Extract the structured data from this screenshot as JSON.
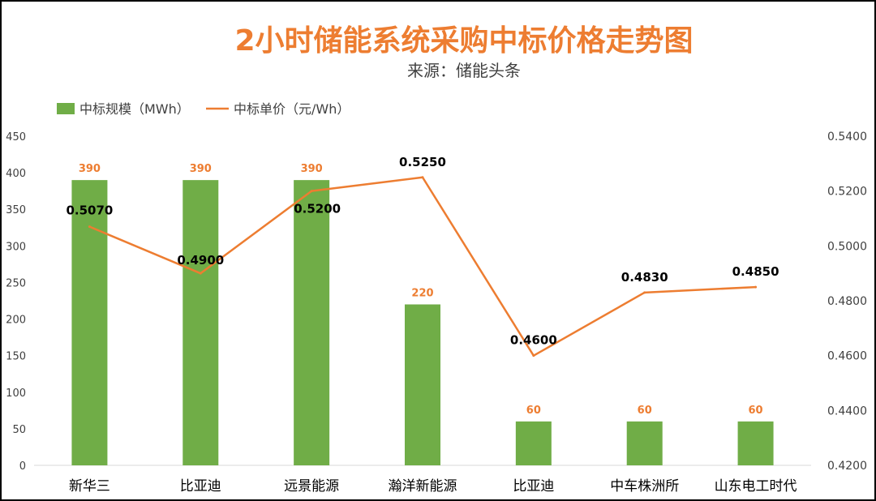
{
  "chart_data": {
    "type": "bar",
    "title": "2小时储能系统采购中标价格走势图",
    "subtitle": "来源：储能头条",
    "categories": [
      "新华三",
      "比亚迪",
      "远景能源",
      "瀚洋新能源",
      "比亚迪",
      "中车株洲所",
      "山东电工时代"
    ],
    "series": [
      {
        "name": "中标规模（MWh）",
        "type": "bar",
        "axis": "left",
        "color": "#70AD47",
        "label_color": "#ED7D31",
        "values": [
          390,
          390,
          390,
          220,
          60,
          60,
          60
        ],
        "labels": [
          "390",
          "390",
          "390",
          "220",
          "60",
          "60",
          "60"
        ]
      },
      {
        "name": "中标单价（元/Wh）",
        "type": "line",
        "axis": "right",
        "color": "#ED7D31",
        "label_color": "#000000",
        "values": [
          0.507,
          0.49,
          0.52,
          0.525,
          0.46,
          0.483,
          0.485
        ],
        "labels": [
          "0.5070",
          "0.4900",
          "0.5200",
          "0.5250",
          "0.4600",
          "0.4830",
          "0.4850"
        ]
      }
    ],
    "y_left": {
      "min": 0,
      "max": 450,
      "ticks": [
        "0",
        "50",
        "100",
        "150",
        "200",
        "250",
        "300",
        "350",
        "400",
        "450"
      ]
    },
    "y_right": {
      "min": 0.42,
      "max": 0.54,
      "ticks": [
        "0.4200",
        "0.4400",
        "0.4600",
        "0.4800",
        "0.5000",
        "0.5200",
        "0.5400"
      ]
    },
    "grid": false,
    "legend_position": "top-left",
    "title_color": "#ED7D31",
    "axis_text_color": "#404040"
  }
}
